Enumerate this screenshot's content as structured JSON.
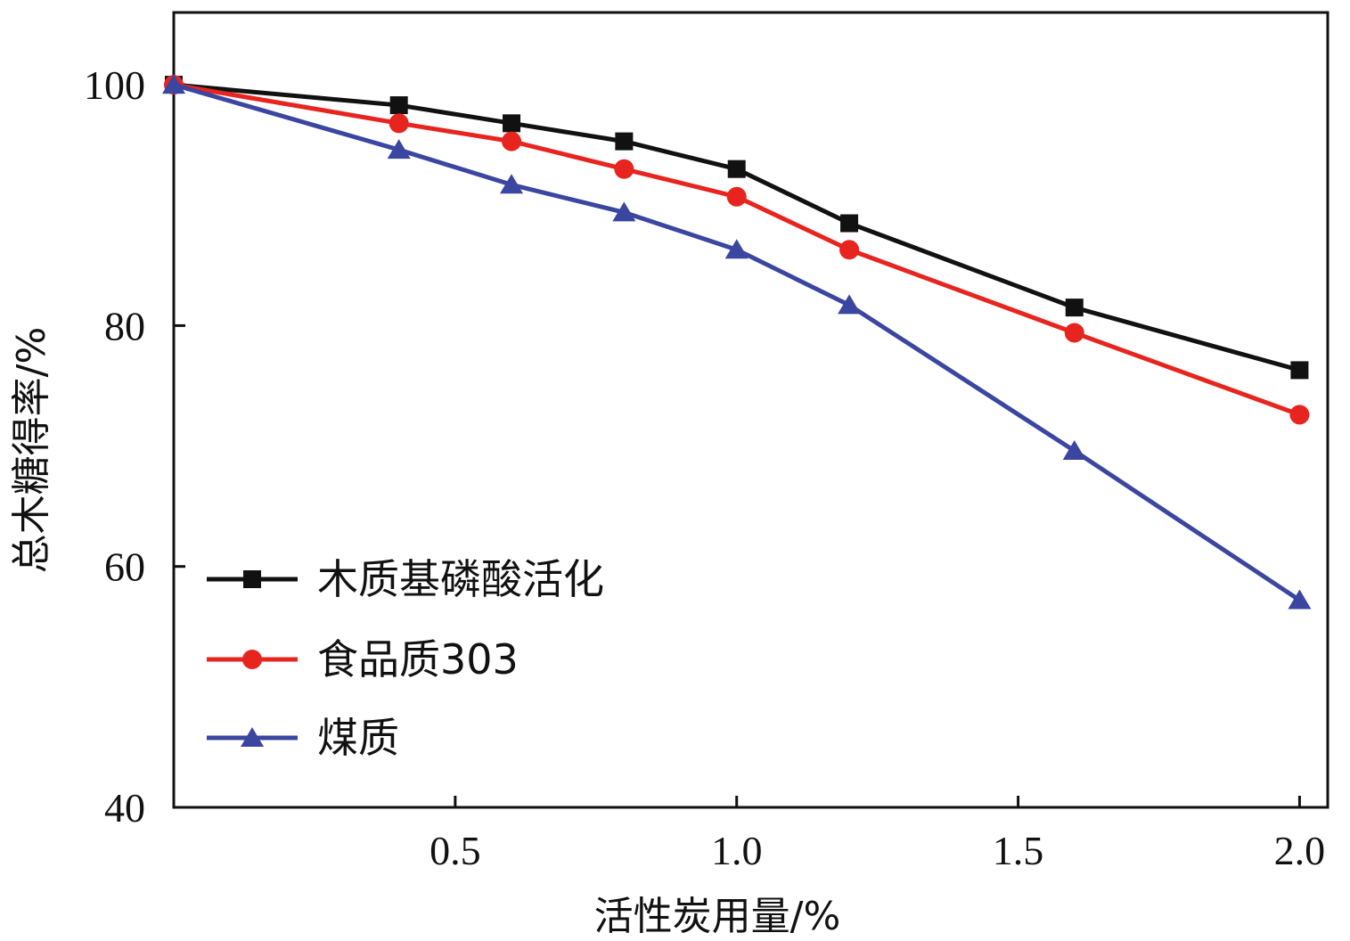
{
  "chart_data": {
    "type": "line",
    "xlabel": "活性炭用量/%",
    "ylabel": "总木糖得率/%",
    "xlim": [
      0,
      2.05
    ],
    "ylim": [
      40,
      106
    ],
    "xticks": [
      0.5,
      1.0,
      1.5,
      2.0
    ],
    "xtick_labels": [
      "0.5",
      "1.0",
      "1.5",
      "2.0"
    ],
    "yticks": [
      40,
      60,
      80,
      100
    ],
    "ytick_labels": [
      "40",
      "60",
      "80",
      "100"
    ],
    "grid": false,
    "legend_position": "bottom-left",
    "x": [
      0,
      0.4,
      0.6,
      0.8,
      1.0,
      1.2,
      1.6,
      2.0
    ],
    "series": [
      {
        "name": "木质基磷酸活化",
        "color": "#111111",
        "marker": "square",
        "values": [
          100.0,
          98.3,
          96.8,
          95.3,
          93.0,
          88.5,
          81.5,
          76.3
        ]
      },
      {
        "name": "食品质303",
        "color": "#e8241f",
        "marker": "circle",
        "values": [
          100.0,
          96.8,
          95.3,
          93.0,
          90.7,
          86.3,
          79.4,
          72.6
        ]
      },
      {
        "name": "煤质",
        "color": "#3a46a0",
        "marker": "triangle",
        "values": [
          100.0,
          94.6,
          91.7,
          89.4,
          86.3,
          81.7,
          69.6,
          57.2
        ]
      }
    ]
  }
}
